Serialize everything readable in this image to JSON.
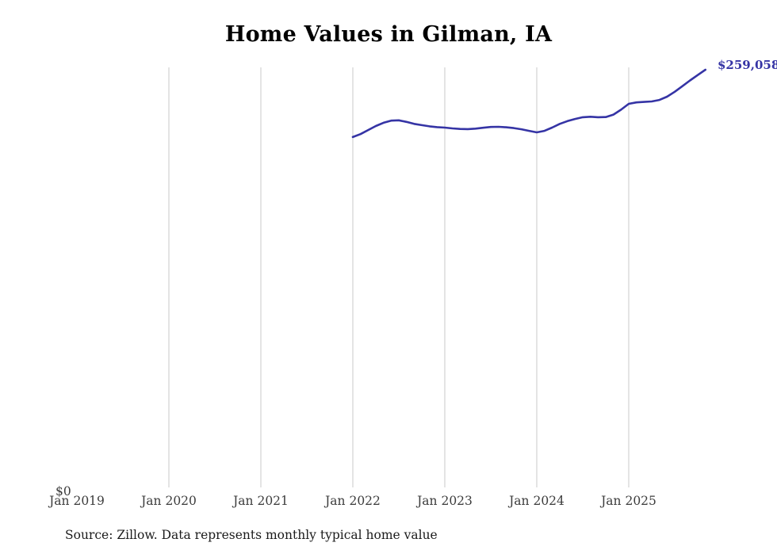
{
  "chart_data": {
    "type": "line",
    "title": "Home Values in Gilman, IA",
    "source": "Source: Zillow. Data represents monthly typical home value",
    "end_label": "$259,058",
    "y_zero_label": "$0",
    "x_tick_labels": [
      "Jan 2019",
      "Jan 2020",
      "Jan 2021",
      "Jan 2022",
      "Jan 2023",
      "Jan 2024",
      "Jan 2025"
    ],
    "ylabel": "",
    "xlabel": "",
    "ylim": [
      0,
      259058
    ],
    "grid": "vertical-yearly",
    "legend": "none",
    "line_color": "#3534a5",
    "grid_color": "#d8d8d8",
    "series": [
      {
        "name": "Monthly typical home value",
        "start_month": "2022-01",
        "end_month": "2025-11",
        "values": [
          217700,
          219500,
          222000,
          224500,
          226500,
          227800,
          228000,
          227000,
          225800,
          225000,
          224300,
          223800,
          223500,
          223000,
          222700,
          222600,
          222900,
          223400,
          223900,
          224000,
          223700,
          223200,
          222500,
          221500,
          220600,
          221500,
          223500,
          225800,
          227500,
          228800,
          229900,
          230200,
          229900,
          230000,
          231500,
          234500,
          238100,
          239000,
          239300,
          239600,
          240500,
          242500,
          245500,
          249000,
          252500,
          255800,
          259058
        ]
      }
    ]
  }
}
